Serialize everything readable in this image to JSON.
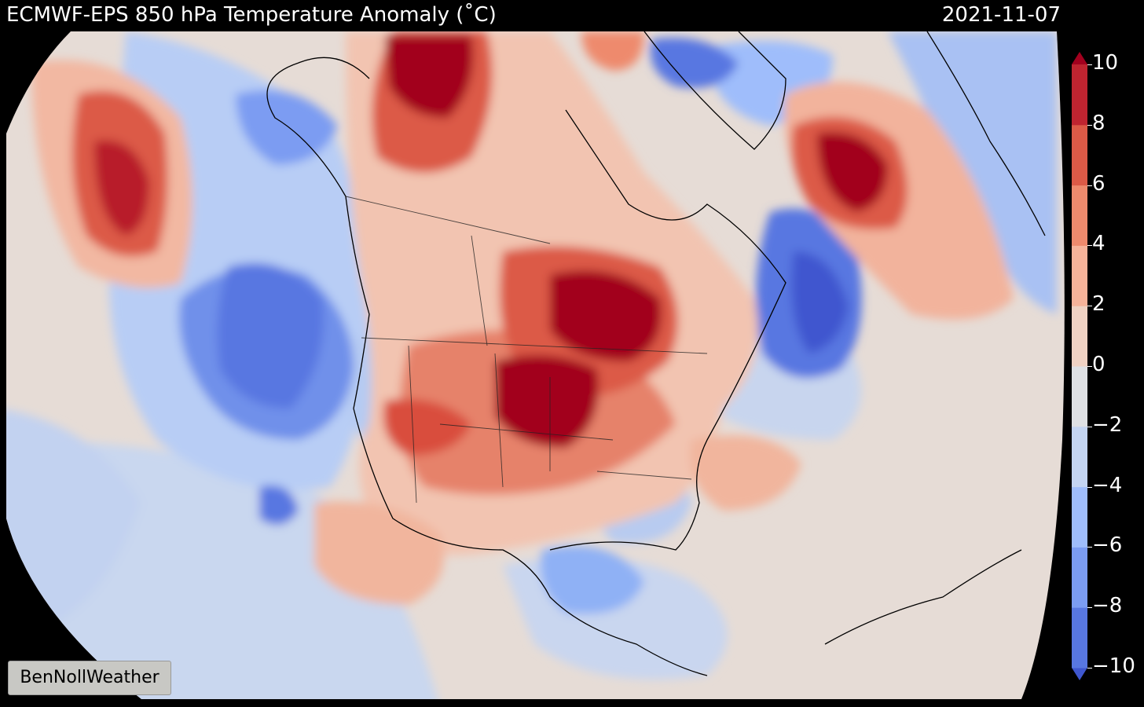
{
  "header": {
    "title": "ECMWF-EPS 850 hPa Temperature Anomaly (˚C)",
    "date": "2021-11-07"
  },
  "legend": {
    "ticks": [
      "10",
      "8",
      "6",
      "4",
      "2",
      "0",
      "−2",
      "−4",
      "−6",
      "−8",
      "−10"
    ],
    "range": [
      -10,
      10
    ],
    "colors": [
      "#3f57cf",
      "#5877e1",
      "#7b9cf2",
      "#9fbdfb",
      "#c4d5f2",
      "#dfe1e4",
      "#f0d2c3",
      "#f6b39a",
      "#ee8a6d",
      "#dc5a47",
      "#bf2430",
      "#a2001e"
    ]
  },
  "credit": "BenNollWeather"
}
